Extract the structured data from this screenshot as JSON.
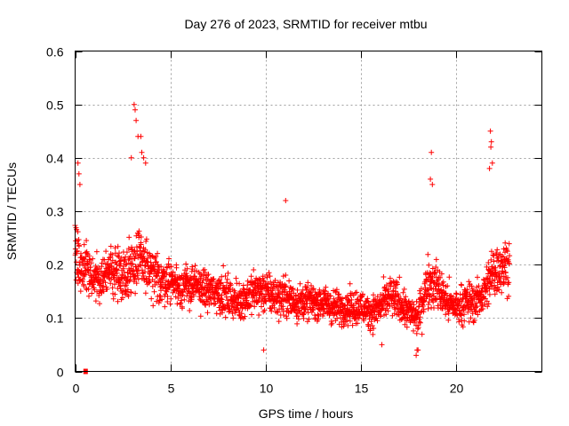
{
  "chart_data": {
    "type": "scatter",
    "title": "Day 276 of 2023, SRMTID for receiver mtbu",
    "xlabel": "GPS time / hours",
    "ylabel": "SRMTID / TECUs",
    "xlim": [
      0,
      24.5
    ],
    "ylim": [
      0,
      0.6
    ],
    "x_ticks": [
      0,
      5,
      10,
      15,
      20
    ],
    "x_tick_labels": [
      "0",
      "5",
      "10",
      "15",
      "20"
    ],
    "y_ticks": [
      0,
      0.1,
      0.2,
      0.3,
      0.4,
      0.5,
      0.6
    ],
    "y_tick_labels": [
      "0",
      "0.1",
      "0.2",
      "0.3",
      "0.4",
      "0.5",
      "0.6"
    ],
    "grid": true,
    "marker": "plus",
    "series_color": "#ff0000",
    "zero_marker": {
      "x": 0.55,
      "y": 0.0
    },
    "envelope": {
      "time_hours": [
        0.0,
        0.5,
        1.0,
        1.5,
        2.0,
        2.5,
        3.0,
        3.5,
        4.0,
        4.5,
        5.0,
        5.5,
        6.0,
        6.5,
        7.0,
        7.5,
        8.0,
        8.5,
        9.0,
        9.5,
        10.0,
        10.5,
        11.0,
        11.5,
        12.0,
        12.5,
        13.0,
        13.5,
        14.0,
        14.5,
        15.0,
        15.5,
        16.0,
        16.5,
        17.0,
        17.5,
        18.0,
        18.5,
        19.0,
        19.5,
        20.0,
        20.5,
        21.0,
        21.5,
        22.0,
        22.5,
        22.8
      ],
      "typical_srmtid": [
        0.22,
        0.19,
        0.17,
        0.18,
        0.19,
        0.18,
        0.2,
        0.21,
        0.18,
        0.17,
        0.17,
        0.16,
        0.16,
        0.16,
        0.15,
        0.15,
        0.14,
        0.13,
        0.14,
        0.15,
        0.15,
        0.14,
        0.14,
        0.13,
        0.13,
        0.13,
        0.13,
        0.12,
        0.12,
        0.12,
        0.12,
        0.11,
        0.12,
        0.14,
        0.13,
        0.11,
        0.1,
        0.17,
        0.16,
        0.13,
        0.12,
        0.13,
        0.13,
        0.15,
        0.19,
        0.2,
        0.2
      ],
      "spread": [
        0.1,
        0.07,
        0.06,
        0.07,
        0.07,
        0.07,
        0.1,
        0.09,
        0.08,
        0.07,
        0.06,
        0.06,
        0.06,
        0.06,
        0.06,
        0.06,
        0.06,
        0.05,
        0.06,
        0.07,
        0.06,
        0.06,
        0.06,
        0.06,
        0.05,
        0.05,
        0.05,
        0.05,
        0.05,
        0.05,
        0.05,
        0.05,
        0.05,
        0.06,
        0.06,
        0.05,
        0.05,
        0.08,
        0.07,
        0.06,
        0.05,
        0.06,
        0.06,
        0.06,
        0.09,
        0.08,
        0.08
      ]
    },
    "peaks": [
      {
        "x": 0.15,
        "y": 0.39
      },
      {
        "x": 0.2,
        "y": 0.37
      },
      {
        "x": 0.25,
        "y": 0.35
      },
      {
        "x": 3.1,
        "y": 0.5
      },
      {
        "x": 3.15,
        "y": 0.49
      },
      {
        "x": 3.2,
        "y": 0.47
      },
      {
        "x": 3.3,
        "y": 0.44
      },
      {
        "x": 3.45,
        "y": 0.44
      },
      {
        "x": 3.5,
        "y": 0.41
      },
      {
        "x": 3.6,
        "y": 0.4
      },
      {
        "x": 3.7,
        "y": 0.39
      },
      {
        "x": 2.95,
        "y": 0.4
      },
      {
        "x": 11.05,
        "y": 0.32
      },
      {
        "x": 18.7,
        "y": 0.41
      },
      {
        "x": 18.65,
        "y": 0.36
      },
      {
        "x": 18.75,
        "y": 0.35
      },
      {
        "x": 21.8,
        "y": 0.45
      },
      {
        "x": 21.85,
        "y": 0.43
      },
      {
        "x": 21.82,
        "y": 0.42
      },
      {
        "x": 21.9,
        "y": 0.39
      },
      {
        "x": 21.75,
        "y": 0.38
      }
    ],
    "lows": [
      {
        "x": 17.9,
        "y": 0.03
      },
      {
        "x": 17.95,
        "y": 0.04
      },
      {
        "x": 18.0,
        "y": 0.04
      },
      {
        "x": 9.9,
        "y": 0.04
      },
      {
        "x": 16.1,
        "y": 0.05
      }
    ]
  }
}
